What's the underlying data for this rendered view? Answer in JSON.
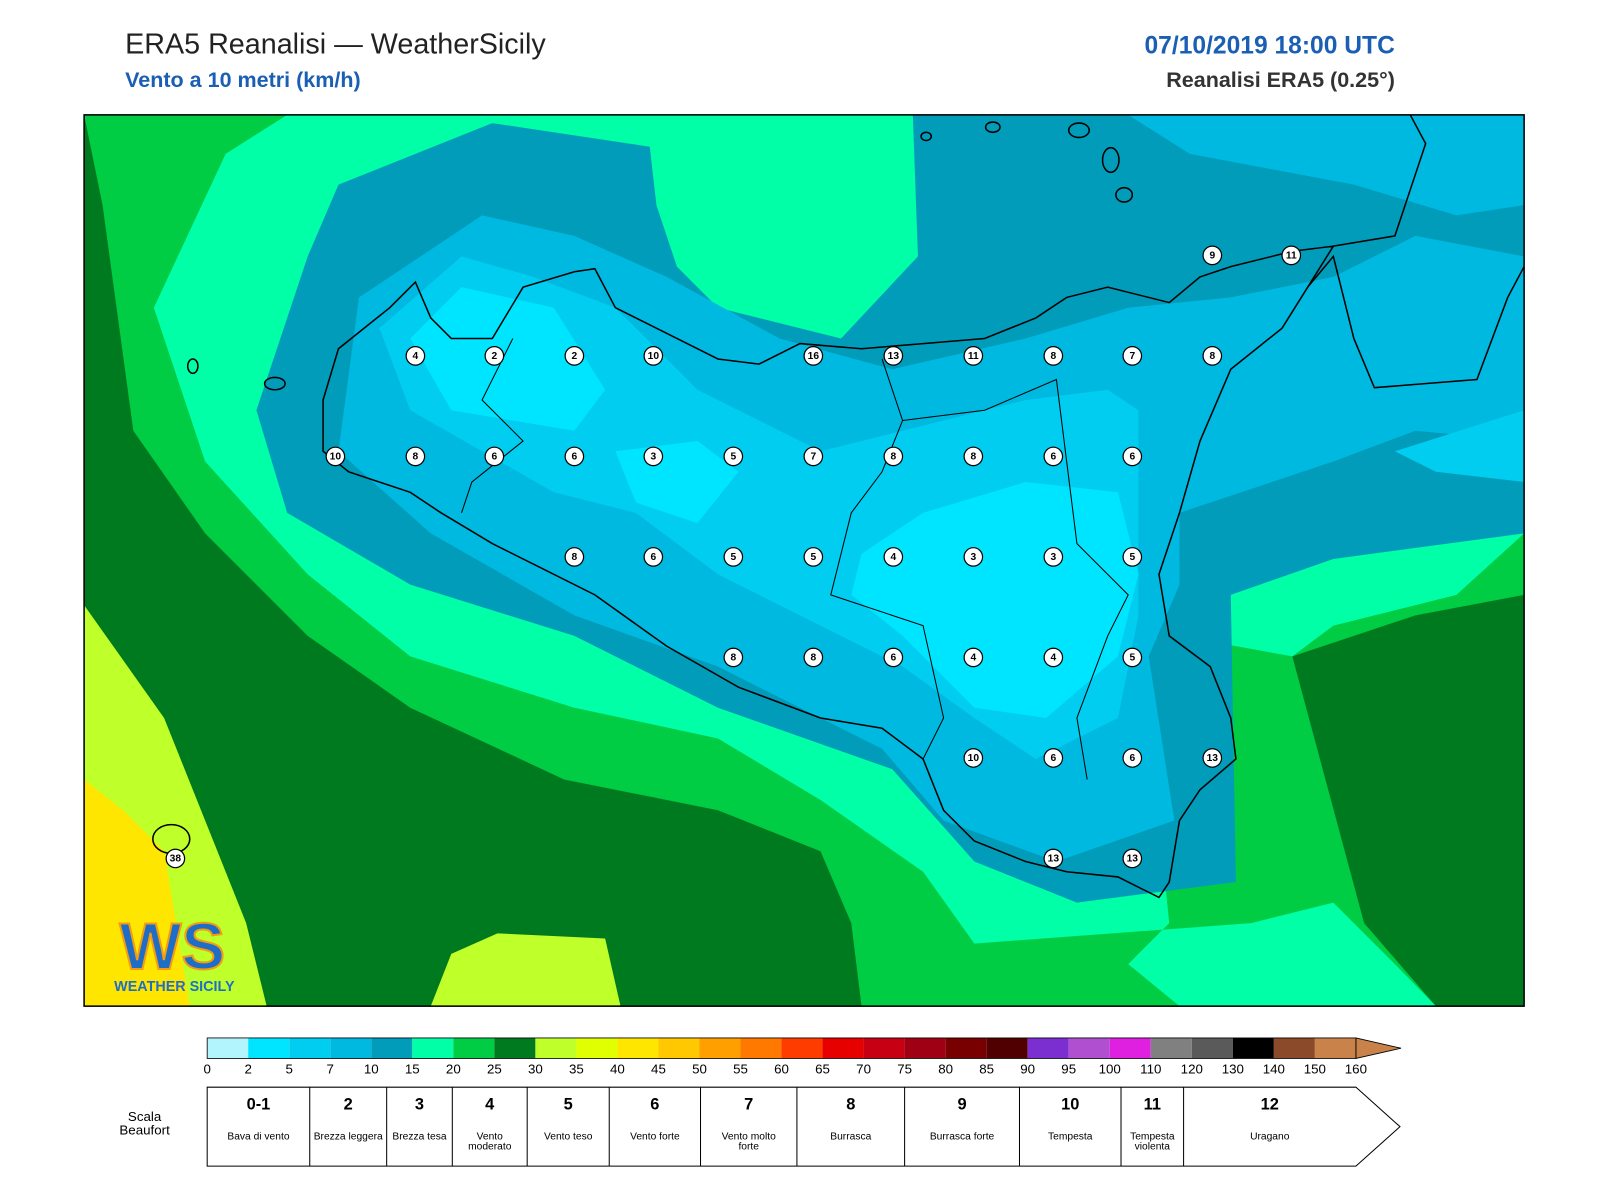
{
  "header": {
    "title": "ERA5 Reanalisi — WeatherSicily",
    "subtitle": "Vento a 10 metri (km/h)",
    "datetime": "07/10/2019 18:00 UTC",
    "source": "Reanalisi ERA5 (0.25°)"
  },
  "stations": [
    9,
    11,
    4,
    2,
    2,
    10,
    16,
    13,
    11,
    8,
    7,
    8,
    10,
    8,
    6,
    6,
    3,
    5,
    7,
    8,
    8,
    6,
    6,
    8,
    6,
    5,
    5,
    4,
    3,
    3,
    5,
    8,
    8,
    6,
    4,
    4,
    5,
    10,
    6,
    6,
    13,
    13,
    13,
    38
  ],
  "logo": {
    "text": "WS",
    "caption": "WEATHER SICILY"
  },
  "colorbar": {
    "ticks": [
      0,
      2,
      5,
      7,
      10,
      15,
      20,
      25,
      30,
      35,
      40,
      45,
      50,
      55,
      60,
      65,
      70,
      75,
      80,
      85,
      90,
      95,
      100,
      110,
      120,
      130,
      140,
      150,
      160
    ],
    "colors": [
      "#b3f5fc",
      "#00e5ff",
      "#00cdf0",
      "#00b9e0",
      "#009cba",
      "#00ffa6",
      "#00cc44",
      "#007a1e",
      "#bfff2a",
      "#e0ff00",
      "#ffe600",
      "#ffc800",
      "#ffa000",
      "#ff7800",
      "#ff3c00",
      "#e60000",
      "#c80014",
      "#a00014",
      "#780000",
      "#500000",
      "#7b2fd0",
      "#b050d0",
      "#e020e0",
      "#808080",
      "#5a5a5a",
      "#000000",
      "#8b4a2a",
      "#c8824a"
    ]
  },
  "beaufort": {
    "title": "Scala Beaufort",
    "levels": [
      {
        "force": "0-1",
        "name": "Bava di vento"
      },
      {
        "force": "2",
        "name": "Brezza leggera"
      },
      {
        "force": "3",
        "name": "Brezza tesa"
      },
      {
        "force": "4",
        "name": "Vento moderato"
      },
      {
        "force": "5",
        "name": "Vento teso"
      },
      {
        "force": "6",
        "name": "Vento forte"
      },
      {
        "force": "7",
        "name": "Vento molto forte"
      },
      {
        "force": "8",
        "name": "Burrasca"
      },
      {
        "force": "9",
        "name": "Burrasca forte"
      },
      {
        "force": "10",
        "name": "Tempesta"
      },
      {
        "force": "11",
        "name": "Tempesta violenta"
      },
      {
        "force": "12",
        "name": "Uragano"
      }
    ]
  }
}
